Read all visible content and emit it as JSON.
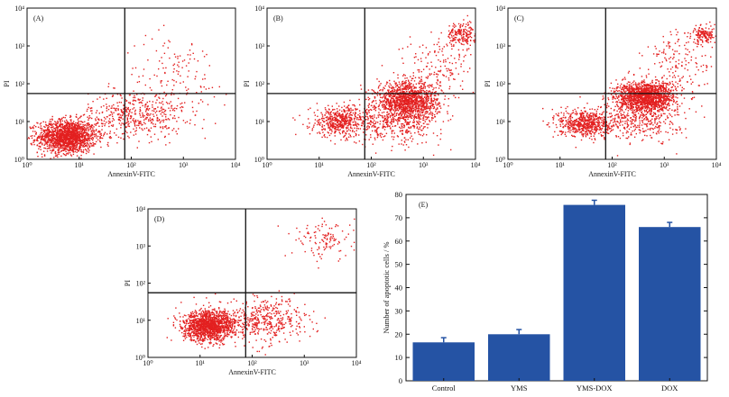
{
  "chart_data": [
    {
      "type": "scatter",
      "panel_label": "(A)",
      "xlabel": "AnnexinV-FITC",
      "ylabel": "PI",
      "x_scale": "log",
      "y_scale": "log",
      "xlim": [
        1,
        10000
      ],
      "ylim": [
        1,
        10000
      ],
      "x_ticks": [
        "10⁰",
        "10¹",
        "10²",
        "10³",
        "10⁴"
      ],
      "y_ticks": [
        "10⁰",
        "10¹",
        "10²",
        "10³",
        "10⁴"
      ],
      "gate": {
        "x": 75,
        "y": 55
      },
      "clusters": [
        {
          "cx": 6,
          "cy": 4,
          "sx": 0.28,
          "sy": 0.22,
          "n": 1600
        },
        {
          "cx": 120,
          "cy": 15,
          "sx": 0.45,
          "sy": 0.3,
          "n": 450
        },
        {
          "cx": 700,
          "cy": 130,
          "sx": 0.5,
          "sy": 0.6,
          "n": 150
        }
      ]
    },
    {
      "type": "scatter",
      "panel_label": "(B)",
      "xlabel": "AnnexinV-FITC",
      "ylabel": "PI",
      "x_scale": "log",
      "y_scale": "log",
      "xlim": [
        1,
        10000
      ],
      "ylim": [
        1,
        10000
      ],
      "x_ticks": [
        "10⁰",
        "10¹",
        "10²",
        "10³",
        "10⁴"
      ],
      "y_ticks": [
        "10⁰",
        "10¹",
        "10²",
        "10³",
        "10⁴"
      ],
      "gate": {
        "x": 75,
        "y": 55
      },
      "clusters": [
        {
          "cx": 25,
          "cy": 10,
          "sx": 0.28,
          "sy": 0.2,
          "n": 500
        },
        {
          "cx": 500,
          "cy": 35,
          "sx": 0.3,
          "sy": 0.25,
          "n": 1300
        },
        {
          "cx": 300,
          "cy": 10,
          "sx": 0.45,
          "sy": 0.3,
          "n": 400
        },
        {
          "cx": 5500,
          "cy": 2000,
          "sx": 0.15,
          "sy": 0.15,
          "n": 200
        },
        {
          "cx": 2000,
          "cy": 300,
          "sx": 0.35,
          "sy": 0.4,
          "n": 150
        }
      ]
    },
    {
      "type": "scatter",
      "panel_label": "(C)",
      "xlabel": "AnnexinV-FITC",
      "ylabel": "PI",
      "x_scale": "log",
      "y_scale": "log",
      "xlim": [
        1,
        10000
      ],
      "ylim": [
        1,
        10000
      ],
      "x_ticks": [
        "10⁰",
        "10¹",
        "10²",
        "10³",
        "10⁴"
      ],
      "y_ticks": [
        "10⁰",
        "10¹",
        "10²",
        "10³",
        "10⁴"
      ],
      "gate": {
        "x": 75,
        "y": 55
      },
      "clusters": [
        {
          "cx": 30,
          "cy": 9,
          "sx": 0.25,
          "sy": 0.18,
          "n": 600
        },
        {
          "cx": 450,
          "cy": 45,
          "sx": 0.28,
          "sy": 0.2,
          "n": 1500
        },
        {
          "cx": 300,
          "cy": 12,
          "sx": 0.4,
          "sy": 0.3,
          "n": 400
        },
        {
          "cx": 6000,
          "cy": 2000,
          "sx": 0.12,
          "sy": 0.12,
          "n": 150
        },
        {
          "cx": 2000,
          "cy": 400,
          "sx": 0.35,
          "sy": 0.4,
          "n": 150
        }
      ]
    },
    {
      "type": "scatter",
      "panel_label": "(D)",
      "xlabel": "AnnexinV-FITC",
      "ylabel": "PI",
      "x_scale": "log",
      "y_scale": "log",
      "xlim": [
        1,
        10000
      ],
      "ylim": [
        1,
        10000
      ],
      "x_ticks": [
        "10⁰",
        "10¹",
        "10²",
        "10³",
        "10⁴"
      ],
      "y_ticks": [
        "10⁰",
        "10¹",
        "10²",
        "10³",
        "10⁴"
      ],
      "gate": {
        "x": 75,
        "y": 55
      },
      "clusters": [
        {
          "cx": 15,
          "cy": 7,
          "sx": 0.25,
          "sy": 0.2,
          "n": 1400
        },
        {
          "cx": 180,
          "cy": 10,
          "sx": 0.4,
          "sy": 0.3,
          "n": 450
        },
        {
          "cx": 2500,
          "cy": 1500,
          "sx": 0.3,
          "sy": 0.25,
          "n": 120
        }
      ]
    },
    {
      "type": "bar",
      "panel_label": "(E)",
      "categories": [
        "Control",
        "YMS",
        "YMS-DOX",
        "DOX"
      ],
      "values": [
        16.5,
        20,
        75.5,
        66
      ],
      "errors": [
        2,
        2,
        2,
        2
      ],
      "ylabel": "Number of apoptotic cells / %",
      "xlabel": "",
      "ylim": [
        0,
        80
      ],
      "y_ticks": [
        "0",
        "10",
        "20",
        "30",
        "40",
        "50",
        "60",
        "70",
        "80"
      ],
      "bar_color": "#2553a4",
      "error_color": "#2553a4"
    }
  ],
  "colors": {
    "dots": "#e32020",
    "axes": "#111111"
  }
}
